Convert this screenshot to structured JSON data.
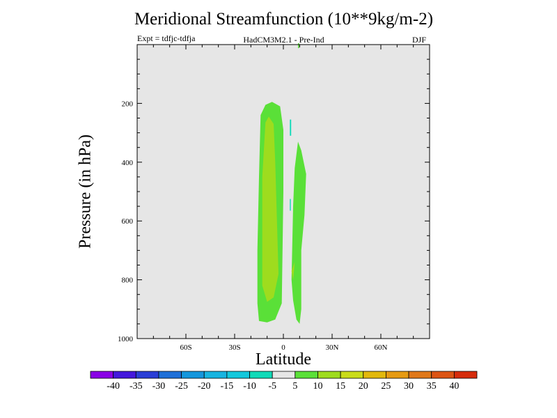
{
  "chart_data": {
    "type": "contour",
    "title": "Meridional Streamfunction (10**9kg/m-2)",
    "experiment_label": "Expt = tdfjc-tdfja",
    "model_label": "HadCM3M2.1 - Pre-Ind",
    "season_label": "DJF",
    "xlabel": "Latitude",
    "ylabel": "Pressure (in hPa)",
    "xlim": [
      -90,
      90
    ],
    "ylim": [
      1000,
      0
    ],
    "x_ticks": [
      {
        "value": -60,
        "label": "60S"
      },
      {
        "value": -30,
        "label": "30S"
      },
      {
        "value": 0,
        "label": "0"
      },
      {
        "value": 30,
        "label": "30N"
      },
      {
        "value": 60,
        "label": "60N"
      }
    ],
    "y_ticks": [
      {
        "value": 200,
        "label": "200"
      },
      {
        "value": 400,
        "label": "400"
      },
      {
        "value": 600,
        "label": "600"
      },
      {
        "value": 800,
        "label": "800"
      },
      {
        "value": 1000,
        "label": "1000"
      }
    ],
    "colorbar": {
      "boundaries": [
        "-40",
        "-35",
        "-30",
        "-25",
        "-20",
        "-15",
        "-10",
        "-5",
        "5",
        "10",
        "15",
        "20",
        "25",
        "30",
        "35",
        "40"
      ],
      "colors": [
        "#8a00e6",
        "#4418dc",
        "#2a3ed6",
        "#1f70d8",
        "#1496dc",
        "#17b4e0",
        "#13c8dc",
        "#10dab8",
        "#e6e6e6",
        "#5ae038",
        "#9edc1e",
        "#cadc1a",
        "#e2b80c",
        "#e69a12",
        "#e0781a",
        "#dc5414",
        "#d62c0c"
      ]
    },
    "background_color": "#e6e6e6",
    "regions": [
      {
        "level": "5 to 10",
        "color": "#5ae038",
        "points": [
          [
            -10,
            945
          ],
          [
            -15,
            940
          ],
          [
            -16,
            880
          ],
          [
            -16,
            700
          ],
          [
            -15,
            450
          ],
          [
            -14,
            240
          ],
          [
            -11,
            205
          ],
          [
            -7,
            195
          ],
          [
            -2,
            210
          ],
          [
            0,
            290
          ],
          [
            0,
            500
          ],
          [
            -1,
            880
          ],
          [
            -5,
            935
          ]
        ]
      },
      {
        "level": "10 to 15",
        "color": "#9edc1e",
        "points": [
          [
            -10,
            875
          ],
          [
            -13,
            820
          ],
          [
            -13,
            450
          ],
          [
            -11,
            265
          ],
          [
            -9,
            245
          ],
          [
            -6,
            270
          ],
          [
            -5,
            400
          ],
          [
            -3,
            780
          ],
          [
            -6,
            860
          ]
        ]
      },
      {
        "level": "5 to 10",
        "color": "#5ae038",
        "points": [
          [
            10,
            950
          ],
          [
            8,
            935
          ],
          [
            6,
            870
          ],
          [
            5,
            800
          ],
          [
            6,
            550
          ],
          [
            7,
            420
          ],
          [
            9,
            330
          ],
          [
            11,
            360
          ],
          [
            14,
            440
          ],
          [
            13,
            580
          ],
          [
            11,
            700
          ],
          [
            11,
            900
          ]
        ]
      },
      {
        "level": "10 to 15",
        "color": "#9edc1e",
        "points": [
          [
            5,
            770
          ],
          [
            7,
            740
          ],
          [
            6,
            800
          ]
        ]
      },
      {
        "level": "-10 to -5",
        "color": "#10dab8",
        "points": [
          [
            4,
            255
          ],
          [
            4.8,
            255
          ],
          [
            4.8,
            310
          ],
          [
            4,
            310
          ]
        ]
      },
      {
        "level": "-10 to -5",
        "color": "#10dab8",
        "points": [
          [
            4,
            525
          ],
          [
            4.6,
            525
          ],
          [
            4.6,
            565
          ],
          [
            4,
            565
          ]
        ]
      },
      {
        "level": "5 to 10",
        "color": "#5ae038",
        "points": [
          [
            9,
            -5
          ],
          [
            9.7,
            -5
          ],
          [
            9.7,
            12
          ],
          [
            9,
            12
          ]
        ]
      }
    ]
  }
}
